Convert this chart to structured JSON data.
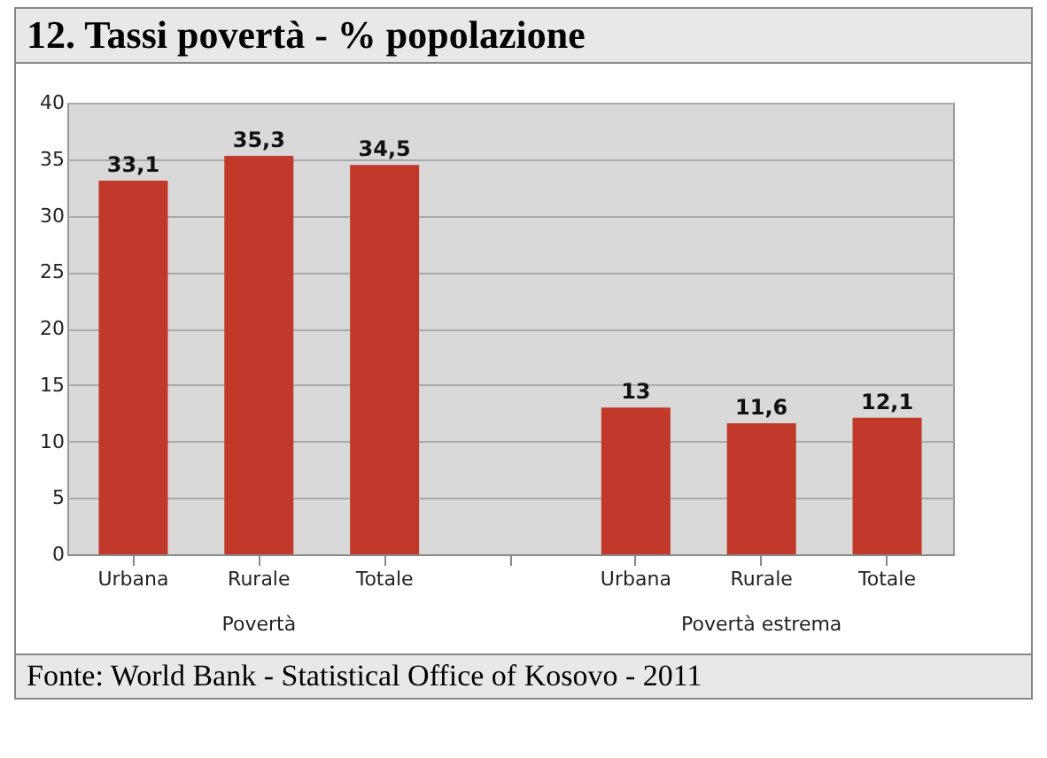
{
  "chart_data": {
    "type": "bar",
    "title": "12. Tassi povertà - % popolazione",
    "categories": [
      "Urbana",
      "Rurale",
      "Totale",
      null,
      "Urbana",
      "Rurale",
      "Totale"
    ],
    "values": [
      33.1,
      35.3,
      34.5,
      null,
      13,
      11.6,
      12.1
    ],
    "value_labels": [
      "33,1",
      "35,3",
      "34,5",
      null,
      "13",
      "11,6",
      "12,1"
    ],
    "color": "#c0392b",
    "ylim": [
      0,
      40
    ],
    "yticks": [
      0,
      5,
      10,
      15,
      20,
      25,
      30,
      35,
      40
    ],
    "grid": "y",
    "annotations": [
      "Povertà",
      "Povertà estrema",
      "Fonte: World Bank - Statistical Office of Kosovo - 2011"
    ]
  }
}
